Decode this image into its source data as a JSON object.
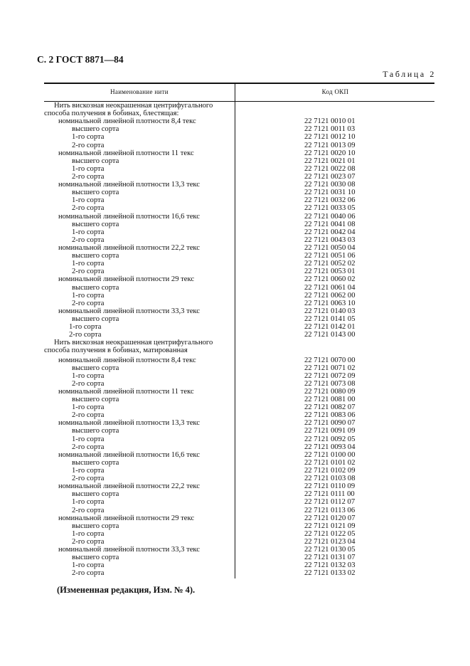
{
  "header": "С. 2 ГОСТ 8871—84",
  "table_caption": "Таблица 2",
  "columns": [
    "Наименование нити",
    "Код ОКП"
  ],
  "sections": [
    {
      "title_lines": [
        "Нить вискозная неокрашенная центрифугального",
        "способа получения в бобинах, блестящая:"
      ],
      "groups": [
        {
          "name": "номинальной линейной плотности 8,4 текс",
          "code": "22 7121 0010 01",
          "grades": [
            [
              "высшего сорта",
              "22 7121 0011 03"
            ],
            [
              "1-го сорта",
              "22 7121 0012 10"
            ],
            [
              "2-го сорта",
              "22 7121 0013 09"
            ]
          ]
        },
        {
          "name": "номинальной линейной плотности 11 текс",
          "code": "22 7121 0020 10",
          "grades": [
            [
              "высшего сорта",
              "22 7121 0021 01"
            ],
            [
              "1-го сорта",
              "22 7121 0022 08"
            ],
            [
              "2-го сорта",
              "22 7121 0023 07"
            ]
          ]
        },
        {
          "name": "номинальной линейной плотности 13,3 текс",
          "code": "22 7121 0030 08",
          "grades": [
            [
              "высшего сорта",
              "22 7121 0031 10"
            ],
            [
              "1-го сорта",
              "22 7121 0032 06"
            ],
            [
              "2-го сорта",
              "22 7121 0033 05"
            ]
          ]
        },
        {
          "name": "номинальной линейной плотности 16,6 текс",
          "code": "22 7121 0040 06",
          "grades": [
            [
              "высшего сорта",
              "22 7121 0041 08"
            ],
            [
              "1-го сорта",
              "22 7121 0042 04"
            ],
            [
              "2-го сорта",
              "22 7121 0043 03"
            ]
          ]
        },
        {
          "name": "номинальной линейной плотности 22,2 текс",
          "code": "22 7121 0050 04",
          "grades": [
            [
              "высшего сорта",
              "22 7121 0051 06"
            ],
            [
              "1-го сорта",
              "22 7121 0052 02"
            ],
            [
              "2-го сорта",
              "22 7121 0053 01"
            ]
          ]
        },
        {
          "name": "номинальной линейной плотности 29 текс",
          "code": "22 7121 0060 02",
          "grades": [
            [
              "высшего сорта",
              "22 7121 0061 04"
            ],
            [
              "1-го сорта",
              "22 7121 0062 00"
            ],
            [
              "2-го сорта",
              "22 7121 0063 10"
            ]
          ]
        },
        {
          "name": "номинальной линейной плотности 33,3 текс",
          "code": "22 7121 0140 03",
          "grades": [
            [
              "высшего сорта",
              "22 7121 0141 05"
            ],
            [
              "1-го сорта",
              "22 7121 0142 01"
            ],
            [
              "2-го сорта",
              "22 7121 0143 00"
            ]
          ]
        }
      ]
    },
    {
      "title_lines": [
        "Нить вискозная неокрашенная центрифугального",
        "способа получения в бобинах, матированная"
      ],
      "groups": [
        {
          "name": "номинальной линейной плотности 8,4 текс",
          "code": "22 7121 0070 00",
          "grades": [
            [
              "высшего сорта",
              "22 7121 0071 02"
            ],
            [
              "1-го сорта",
              "22 7121 0072 09"
            ],
            [
              "2-го сорта",
              "22 7121 0073 08"
            ]
          ]
        },
        {
          "name": "номинальной линейной плотности 11 текс",
          "code": "22 7121 0080 09",
          "grades": [
            [
              "высшего сорта",
              "22 7121 0081 00"
            ],
            [
              "1-го сорта",
              "22 7121 0082 07"
            ],
            [
              "2-го сорта",
              "22 7121 0083 06"
            ]
          ]
        },
        {
          "name": "номинальной линейной плотности 13,3 текс",
          "code": "22 7121 0090 07",
          "grades": [
            [
              "высшего сорта",
              "22 7121 0091 09"
            ],
            [
              "1-го сорта",
              "22 7121 0092 05"
            ],
            [
              "2-го сорта",
              "22 7121 0093 04"
            ]
          ]
        },
        {
          "name": "номинальной линейной плотности 16,6 текс",
          "code": "22 7121 0100 00",
          "grades": [
            [
              "высшего сорта",
              "22 7121 0101 02"
            ],
            [
              "1-го сорта",
              "22 7121 0102 09"
            ],
            [
              "2-го сорта",
              "22 7121 0103 08"
            ]
          ]
        },
        {
          "name": "номинальной линейной плотности 22,2 текс",
          "code": "22 7121 0110 09",
          "grades": [
            [
              "высшего сорта",
              "22 7121 0111 00"
            ],
            [
              "1-го сорта",
              "22 7121 0112 07"
            ],
            [
              "2-го сорта",
              "22 7121 0113 06"
            ]
          ]
        },
        {
          "name": "номинальной линейной плотности 29 текс",
          "code": "22 7121 0120 07",
          "grades": [
            [
              "высшего сорта",
              "22 7121 0121 09"
            ],
            [
              "1-го сорта",
              "22 7121 0122 05"
            ],
            [
              "2-го сорта",
              "22 7121 0123 04"
            ]
          ]
        },
        {
          "name": "номинальной линейной плотности 33,3 текс",
          "code": "22 7121 0130 05",
          "grades": [
            [
              "высшего сорта",
              "22 7121 0131 07"
            ],
            [
              "1-го сорта",
              "22 7121 0132 03"
            ],
            [
              "2-го сорта",
              "22 7121 0133 02"
            ]
          ]
        }
      ]
    }
  ],
  "footnote": "(Измененная редакция, Изм. № 4)."
}
